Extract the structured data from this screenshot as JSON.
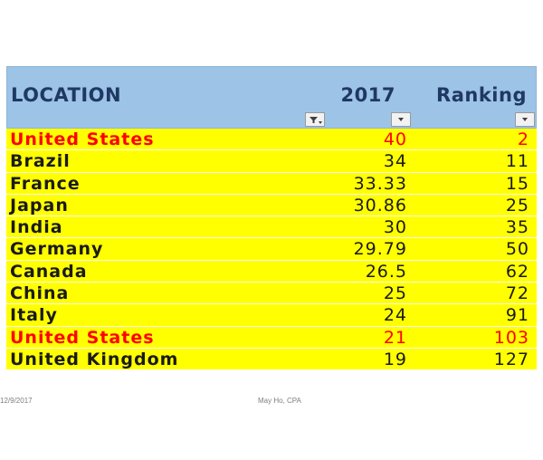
{
  "table": {
    "headers": {
      "location": "LOCATION",
      "year": "2017",
      "ranking": "Ranking"
    },
    "filter_icons": [
      "filter-active-icon",
      "dropdown-arrow-icon",
      "dropdown-arrow-icon"
    ],
    "highlight_colors": {
      "row_bg": "#ffff00",
      "highlight_text": "#ff0000",
      "header_bg": "#9dc3e6",
      "header_text": "#1f3864"
    },
    "rows": [
      {
        "location": "United States",
        "year": "40",
        "ranking": "2",
        "highlight": true
      },
      {
        "location": "Brazil",
        "year": "34",
        "ranking": "11",
        "highlight": false
      },
      {
        "location": "France",
        "year": "33.33",
        "ranking": "15",
        "highlight": false
      },
      {
        "location": "Japan",
        "year": "30.86",
        "ranking": "25",
        "highlight": false
      },
      {
        "location": "India",
        "year": "30",
        "ranking": "35",
        "highlight": false
      },
      {
        "location": "Germany",
        "year": "29.79",
        "ranking": "50",
        "highlight": false
      },
      {
        "location": "Canada",
        "year": "26.5",
        "ranking": "62",
        "highlight": false
      },
      {
        "location": "China",
        "year": "25",
        "ranking": "72",
        "highlight": false
      },
      {
        "location": "Italy",
        "year": "24",
        "ranking": "91",
        "highlight": false
      },
      {
        "location": "United States",
        "year": "21",
        "ranking": "103",
        "highlight": true
      },
      {
        "location": "United Kingdom",
        "year": "19",
        "ranking": "127",
        "highlight": false
      }
    ]
  },
  "footer": {
    "date": "12/9/2017",
    "author": "May Ho, CPA"
  }
}
